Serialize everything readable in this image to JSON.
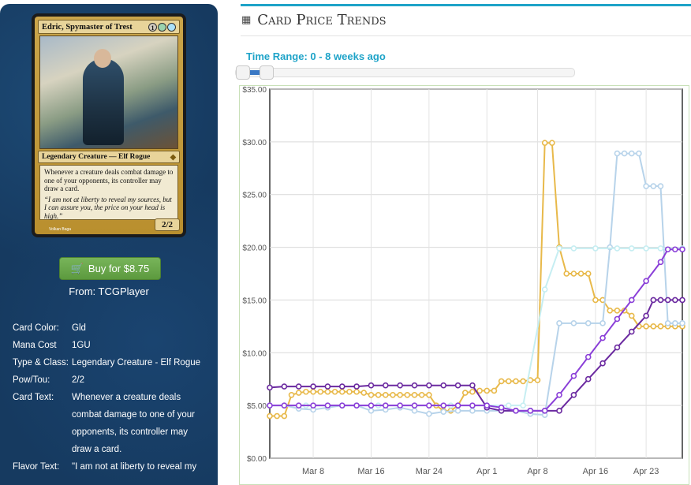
{
  "card": {
    "name": "Edric, Spymaster of Trest",
    "mana_symbols": [
      "1",
      "G",
      "U"
    ],
    "type_line": "Legendary Creature — Elf Rogue",
    "rules_text": "Whenever a creature deals combat damage to one of your opponents, its controller may draw a card.",
    "flavor_text": "“I am not at liberty to reveal my sources, but I can assure you, the price on your head is high.”",
    "pt": "2/2",
    "artist": "Volkan Baga"
  },
  "buy": {
    "label": "Buy for $8.75",
    "from": "From: TCGPlayer"
  },
  "details": [
    {
      "label": "Card Color:",
      "value": "Gld"
    },
    {
      "label": "Mana Cost",
      "value": "1GU"
    },
    {
      "label": "Type & Class:",
      "value": "Legendary Creature - Elf Rogue"
    },
    {
      "label": "Pow/Tou:",
      "value": "2/2"
    },
    {
      "label": "Card Text:",
      "value": "Whenever a creature deals combat damage to one of your opponents, its controller may draw a card."
    },
    {
      "label": "Flavor Text:",
      "value": "\"I am not at liberty to reveal my"
    }
  ],
  "panel": {
    "title": "Card Price Trends",
    "calendar_icon": "calendar-icon",
    "time_range": "Time Range: 0 - 8 weeks ago"
  },
  "colors": {
    "sidebar": "#163a60",
    "accent": "#1ea3c8",
    "buy_button": "#6aa84f",
    "series_gold": "#e8b94a",
    "series_lightblue": "#b7d3ea",
    "series_cyan": "#c6eef2",
    "series_purple": "#6b2aa0",
    "series_violet": "#8a3fd8"
  },
  "chart_data": {
    "type": "line",
    "ylim": [
      0,
      35
    ],
    "yticks": [
      "$0.00",
      "$5.00",
      "$10.00",
      "$15.00",
      "$20.00",
      "$25.00",
      "$30.00",
      "$35.00"
    ],
    "xticks": [
      "Mar 8",
      "Mar 16",
      "Mar 24",
      "Apr 1",
      "Apr 8",
      "Apr 16",
      "Apr 23"
    ],
    "xtick_days": [
      6,
      14,
      22,
      30,
      37,
      45,
      52
    ],
    "xlim": [
      0,
      57
    ],
    "series": [
      {
        "color": "#e8b94a",
        "x": [
          0,
          1,
          2,
          3,
          4,
          5,
          6,
          7,
          8,
          9,
          10,
          11,
          12,
          13,
          14,
          15,
          16,
          17,
          18,
          19,
          20,
          21,
          22,
          23,
          24,
          25,
          26,
          27,
          28,
          29,
          30,
          31,
          32,
          33,
          34,
          35,
          36,
          37,
          38,
          39,
          40,
          41,
          42,
          43,
          44,
          45,
          46,
          47,
          48,
          49,
          50,
          51,
          52,
          53,
          54,
          55,
          56,
          57
        ],
        "values": [
          4.0,
          4.0,
          4.0,
          6.0,
          6.2,
          6.3,
          6.3,
          6.3,
          6.3,
          6.3,
          6.3,
          6.3,
          6.3,
          6.2,
          6.0,
          6.0,
          6.0,
          6.0,
          6.0,
          6.0,
          6.0,
          6.0,
          6.0,
          5.0,
          4.5,
          4.5,
          5.0,
          6.2,
          6.3,
          6.4,
          6.4,
          6.4,
          7.3,
          7.3,
          7.3,
          7.3,
          7.4,
          7.4,
          29.9,
          29.9,
          20.0,
          17.5,
          17.5,
          17.5,
          17.5,
          15.0,
          15.0,
          14.0,
          14.0,
          14.0,
          13.5,
          12.5,
          12.5,
          12.5,
          12.5,
          12.5,
          12.5,
          12.5
        ]
      },
      {
        "color": "#b7d3ea",
        "x": [
          0,
          2,
          4,
          6,
          8,
          10,
          12,
          14,
          16,
          18,
          20,
          22,
          24,
          26,
          28,
          30,
          32,
          34,
          36,
          38,
          40,
          42,
          44,
          46,
          47,
          48,
          49,
          50,
          51,
          52,
          53,
          54,
          55,
          56,
          57
        ],
        "values": [
          5.0,
          5.0,
          4.7,
          4.6,
          4.8,
          5.0,
          5.0,
          4.5,
          4.6,
          4.8,
          4.5,
          4.2,
          4.4,
          4.5,
          4.5,
          4.5,
          4.5,
          4.5,
          4.2,
          4.1,
          12.8,
          12.8,
          12.8,
          12.8,
          20.0,
          28.9,
          28.9,
          28.9,
          28.9,
          25.8,
          25.8,
          25.8,
          12.8,
          12.8,
          12.8
        ]
      },
      {
        "color": "#c6eef2",
        "x": [
          0,
          5,
          10,
          15,
          20,
          25,
          30,
          33,
          35,
          38,
          40,
          42,
          45,
          48,
          50,
          52,
          54,
          57
        ],
        "values": [
          5.0,
          5.0,
          5.0,
          5.0,
          5.0,
          5.0,
          5.0,
          5.0,
          5.0,
          16.0,
          19.9,
          19.9,
          19.9,
          19.9,
          19.9,
          19.9,
          19.9,
          19.9
        ]
      },
      {
        "color": "#6b2aa0",
        "x": [
          0,
          2,
          4,
          6,
          8,
          10,
          12,
          14,
          16,
          18,
          20,
          22,
          24,
          26,
          28,
          30,
          32,
          34,
          36,
          38,
          40,
          42,
          44,
          46,
          48,
          50,
          52,
          53,
          54,
          55,
          56,
          57
        ],
        "values": [
          6.7,
          6.8,
          6.8,
          6.8,
          6.8,
          6.8,
          6.8,
          6.9,
          6.9,
          6.9,
          6.9,
          6.9,
          6.9,
          6.9,
          6.9,
          4.8,
          4.5,
          4.5,
          4.5,
          4.5,
          4.5,
          6.0,
          7.5,
          9.0,
          10.5,
          12.0,
          13.5,
          15.0,
          15.0,
          15.0,
          15.0,
          15.0
        ]
      },
      {
        "color": "#8a3fd8",
        "x": [
          0,
          2,
          4,
          6,
          8,
          10,
          12,
          14,
          16,
          18,
          20,
          22,
          24,
          26,
          28,
          30,
          32,
          34,
          36,
          38,
          40,
          42,
          44,
          46,
          48,
          50,
          52,
          54,
          55,
          56,
          57
        ],
        "values": [
          5.0,
          5.0,
          5.0,
          5.0,
          5.0,
          5.0,
          5.0,
          5.0,
          5.0,
          5.0,
          5.0,
          5.0,
          5.0,
          5.0,
          5.0,
          5.0,
          4.8,
          4.5,
          4.5,
          4.5,
          6.0,
          7.8,
          9.6,
          11.4,
          13.2,
          15.0,
          16.8,
          18.6,
          19.8,
          19.8,
          19.8
        ]
      }
    ]
  }
}
